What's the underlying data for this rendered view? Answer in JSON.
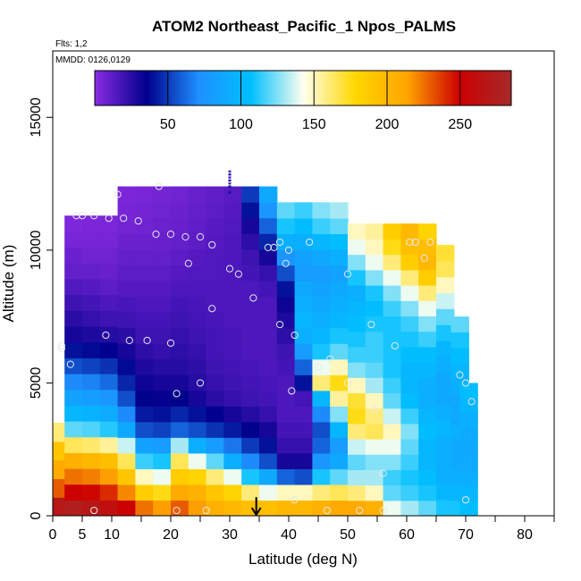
{
  "chart_data": {
    "type": "heatmap",
    "title": "ATOM2 Northeast_Pacific_1 Npos_PALMS",
    "flights_label": "Flts: 1,2",
    "dates_label": "MMDD: 0126,0129",
    "xlabel": "Latitude (deg N)",
    "ylabel": "Altitude (m)",
    "xlim": [
      0,
      85
    ],
    "ylim": [
      0,
      17500
    ],
    "x_ticks": [
      0,
      5,
      10,
      20,
      30,
      40,
      50,
      60,
      70,
      80
    ],
    "x_minor_ticks": [
      15,
      25,
      35,
      45,
      55,
      65,
      75,
      85
    ],
    "y_ticks": [
      0,
      5000,
      10000,
      15000
    ],
    "grid": false,
    "colorbar": {
      "placement": "top",
      "range": [
        0,
        285
      ],
      "ticks": [
        50,
        100,
        150,
        200,
        250
      ],
      "colors": [
        "#8a2be2",
        "#00008b",
        "#1e90ff",
        "#00bfff",
        "#fffff0",
        "#ffd700",
        "#ffa500",
        "#cd0000",
        "#a52a2a"
      ]
    },
    "curtain_columns": [
      {
        "lat": 0.5,
        "top": 300,
        "values": [
          255
        ]
      },
      {
        "lat": 1.5,
        "top": 3500,
        "values": [
          270,
          230,
          210,
          190,
          160
        ]
      },
      {
        "lat": 3.5,
        "top": 11300,
        "values": [
          275,
          250,
          225,
          205,
          165,
          120,
          100,
          85,
          70,
          55,
          40,
          30,
          25,
          20,
          15,
          10,
          8,
          5,
          3
        ]
      },
      {
        "lat": 6.5,
        "top": 11300,
        "values": [
          270,
          248,
          222,
          200,
          162,
          118,
          98,
          82,
          68,
          52,
          38,
          28,
          22,
          18,
          14,
          10,
          7,
          5,
          4
        ]
      },
      {
        "lat": 9.5,
        "top": 11300,
        "values": [
          262,
          240,
          215,
          195,
          155,
          112,
          92,
          75,
          62,
          48,
          35,
          26,
          20,
          16,
          12,
          9,
          7,
          5,
          4
        ]
      },
      {
        "lat": 12.5,
        "top": 12400,
        "values": [
          250,
          220,
          190,
          165,
          135,
          90,
          70,
          55,
          45,
          38,
          30,
          25,
          20,
          17,
          14,
          12,
          10,
          8,
          6,
          5,
          4
        ]
      },
      {
        "lat": 15.5,
        "top": 12400,
        "values": [
          225,
          185,
          150,
          115,
          85,
          55,
          42,
          36,
          32,
          28,
          24,
          20,
          18,
          16,
          14,
          12,
          10,
          8,
          7,
          6,
          5
        ]
      },
      {
        "lat": 18.5,
        "top": 12400,
        "values": [
          215,
          175,
          140,
          110,
          80,
          52,
          40,
          34,
          30,
          26,
          22,
          20,
          18,
          16,
          14,
          12,
          10,
          9,
          8,
          7,
          6
        ]
      },
      {
        "lat": 21.5,
        "top": 12400,
        "values": [
          230,
          210,
          185,
          165,
          130,
          60,
          45,
          36,
          30,
          26,
          24,
          22,
          20,
          18,
          16,
          14,
          12,
          10,
          9,
          8,
          7
        ]
      },
      {
        "lat": 24.5,
        "top": 12400,
        "values": [
          215,
          205,
          180,
          140,
          95,
          55,
          40,
          30,
          26,
          24,
          22,
          20,
          18,
          17,
          16,
          15,
          14,
          12,
          11,
          10,
          9
        ]
      },
      {
        "lat": 27.5,
        "top": 12400,
        "values": [
          205,
          190,
          160,
          120,
          80,
          48,
          35,
          25,
          22,
          20,
          18,
          18,
          17,
          16,
          16,
          15,
          15,
          14,
          13,
          12,
          11
        ]
      },
      {
        "lat": 30.5,
        "top": 12400,
        "values": [
          200,
          180,
          140,
          95,
          65,
          42,
          30,
          22,
          20,
          18,
          17,
          17,
          16,
          16,
          16,
          16,
          16,
          16,
          15,
          14,
          13
        ]
      },
      {
        "lat": 33.5,
        "top": 12400,
        "values": [
          195,
          160,
          110,
          70,
          50,
          36,
          26,
          20,
          18,
          17,
          16,
          16,
          16,
          16,
          16,
          18,
          20,
          24,
          30,
          40,
          50
        ]
      },
      {
        "lat": 36.5,
        "top": 12400,
        "values": [
          195,
          140,
          90,
          55,
          40,
          30,
          22,
          18,
          17,
          16,
          16,
          16,
          16,
          16,
          18,
          22,
          30,
          45,
          60,
          75,
          90
        ]
      },
      {
        "lat": 39.5,
        "top": 11800,
        "values": [
          200,
          150,
          60,
          30,
          22,
          18,
          16,
          16,
          16,
          18,
          20,
          24,
          28,
          32,
          40,
          55,
          75,
          95,
          110,
          120
        ]
      },
      {
        "lat": 42.5,
        "top": 11800,
        "values": [
          200,
          150,
          55,
          30,
          22,
          18,
          16,
          18,
          40,
          60,
          80,
          95,
          100,
          95,
          90,
          80,
          85,
          95,
          105,
          115
        ]
      },
      {
        "lat": 45.5,
        "top": 11800,
        "values": [
          205,
          160,
          110,
          75,
          60,
          55,
          70,
          100,
          160,
          140,
          110,
          100,
          95,
          90,
          85,
          80,
          90,
          100,
          115,
          125
        ]
      },
      {
        "lat": 48.5,
        "top": 11800,
        "values": [
          210,
          165,
          120,
          90,
          80,
          100,
          125,
          155,
          175,
          150,
          120,
          110,
          100,
          95,
          90,
          85,
          95,
          105,
          120,
          130
        ]
      },
      {
        "lat": 51.5,
        "top": 11000,
        "values": [
          210,
          160,
          130,
          120,
          135,
          160,
          175,
          170,
          150,
          125,
          115,
          110,
          105,
          100,
          95,
          110,
          125,
          140,
          150
        ]
      },
      {
        "lat": 54.5,
        "top": 11000,
        "values": [
          205,
          150,
          130,
          125,
          140,
          165,
          160,
          150,
          130,
          120,
          115,
          115,
          110,
          105,
          110,
          125,
          140,
          150,
          155
        ]
      },
      {
        "lat": 57.5,
        "top": 11000,
        "values": [
          140,
          120,
          115,
          125,
          140,
          150,
          135,
          120,
          115,
          110,
          110,
          110,
          110,
          115,
          125,
          140,
          160,
          175,
          185
        ]
      },
      {
        "lat": 60.5,
        "top": 11000,
        "values": [
          130,
          115,
          110,
          115,
          120,
          125,
          115,
          105,
          100,
          100,
          105,
          110,
          115,
          125,
          140,
          160,
          185,
          195,
          200
        ]
      },
      {
        "lat": 63.5,
        "top": 11000,
        "values": [
          120,
          110,
          105,
          100,
          100,
          105,
          100,
          95,
          95,
          100,
          105,
          115,
          125,
          140,
          160,
          185,
          200,
          195,
          180
        ]
      },
      {
        "lat": 66.5,
        "top": 10200,
        "values": [
          110,
          100,
          95,
          95,
          95,
          100,
          95,
          90,
          90,
          95,
          100,
          110,
          120,
          135,
          150,
          165,
          170
        ]
      },
      {
        "lat": 69.0,
        "top": 7500,
        "values": [
          110,
          100,
          95,
          90,
          90,
          95,
          90,
          90,
          95,
          100,
          105,
          110,
          120
        ]
      },
      {
        "lat": 70.5,
        "top": 5000,
        "values": [
          105,
          100,
          95,
          92,
          90,
          92,
          95,
          100,
          105
        ]
      }
    ],
    "column_width": 3,
    "layer_height": 590,
    "vertical_profile": {
      "lat": 30,
      "bottom": 12100,
      "top": 13000
    },
    "sample_points": [
      [
        11,
        12100
      ],
      [
        18,
        12400
      ],
      [
        4,
        11300
      ],
      [
        5,
        11300
      ],
      [
        7,
        11300
      ],
      [
        9.5,
        11200
      ],
      [
        12,
        11200
      ],
      [
        14.5,
        11100
      ],
      [
        17.5,
        10600
      ],
      [
        20,
        10600
      ],
      [
        22.5,
        10500
      ],
      [
        25,
        10500
      ],
      [
        27,
        10200
      ],
      [
        23,
        9500
      ],
      [
        30,
        9300
      ],
      [
        31.5,
        9100
      ],
      [
        36.5,
        10100
      ],
      [
        37.5,
        10100
      ],
      [
        38.5,
        10300
      ],
      [
        39.5,
        9500
      ],
      [
        40,
        10000
      ],
      [
        43.5,
        10300
      ],
      [
        50,
        9100
      ],
      [
        60.5,
        10300
      ],
      [
        61.5,
        10300
      ],
      [
        63,
        9700
      ],
      [
        64,
        10300
      ],
      [
        34,
        8200
      ],
      [
        27,
        7800
      ],
      [
        9,
        6800
      ],
      [
        13,
        6600
      ],
      [
        16,
        6600
      ],
      [
        20,
        6500
      ],
      [
        1.5,
        6400
      ],
      [
        1.5,
        6300
      ],
      [
        3,
        5700
      ],
      [
        21,
        4600
      ],
      [
        25,
        5000
      ],
      [
        38.5,
        7200
      ],
      [
        41,
        6800
      ],
      [
        47,
        5900
      ],
      [
        45,
        5600
      ],
      [
        50,
        5000
      ],
      [
        54,
        7200
      ],
      [
        58,
        6400
      ],
      [
        69,
        5300
      ],
      [
        40.5,
        4700
      ],
      [
        70,
        5000
      ],
      [
        71,
        4300
      ],
      [
        54.5,
        4000
      ],
      [
        56,
        1600
      ],
      [
        41,
        600
      ],
      [
        70,
        600
      ],
      [
        7,
        200
      ],
      [
        21,
        200
      ],
      [
        26,
        200
      ],
      [
        46.5,
        200
      ],
      [
        52,
        200
      ],
      [
        56,
        200
      ]
    ],
    "arrow": {
      "lat": 34.5,
      "from": 700,
      "to": 0
    }
  }
}
